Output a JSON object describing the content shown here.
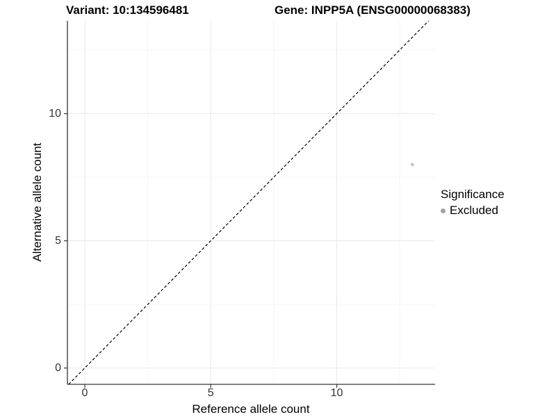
{
  "header": {
    "variant_title": "Variant: 10:134596481",
    "gene_title": "Gene: INPP5A (ENSG00000068383)"
  },
  "chart_data": {
    "type": "scatter",
    "title_left": "Variant: 10:134596481",
    "title_right": "Gene: INPP5A (ENSG00000068383)",
    "xlabel": "Reference allele count",
    "ylabel": "Alternative allele count",
    "xlim": [
      -0.7,
      13.9
    ],
    "ylim": [
      -0.65,
      13.65
    ],
    "x_ticks": [
      0,
      5,
      10
    ],
    "y_ticks": [
      0,
      5,
      10
    ],
    "x_minor_ticks": [
      2.5,
      7.5,
      12.5
    ],
    "y_minor_ticks": [
      2.5,
      7.5,
      12.5
    ],
    "grid": "major and minor gridlines on white background",
    "identity_line": {
      "slope": 1,
      "intercept": 0,
      "style": "dashed",
      "color": "#000000"
    },
    "series": [
      {
        "name": "Excluded",
        "color": "#c8c8c8",
        "point_radius": 2.5,
        "points": [
          {
            "x": 13,
            "y": 8
          }
        ]
      }
    ],
    "legend": {
      "title": "Significance",
      "position": "right",
      "entries": [
        {
          "label": "Excluded",
          "color": "#a3a3a3"
        }
      ]
    }
  },
  "colors": {
    "background": "#ffffff",
    "axis_line": "#333333",
    "tick_mark": "#333333",
    "tick_label": "#333333",
    "grid_major": "#e8e8e8",
    "grid_minor": "#f4f4f4"
  }
}
